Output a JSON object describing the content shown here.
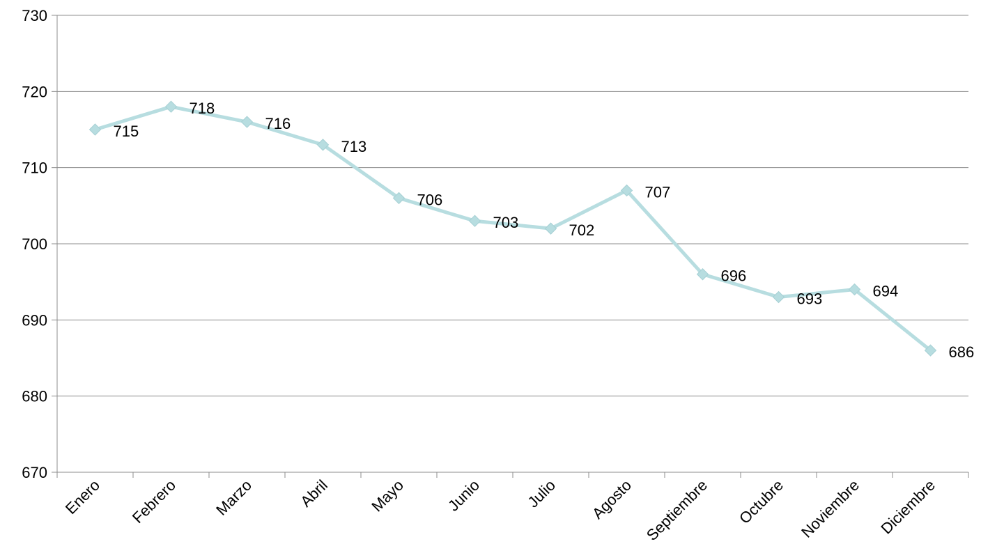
{
  "chart_data": {
    "type": "line",
    "title": "",
    "xlabel": "",
    "ylabel": "",
    "categories": [
      "Enero",
      "Febrero",
      "Marzo",
      "Abril",
      "Mayo",
      "Junio",
      "Julio",
      "Agosto",
      "Septiembre",
      "Octubre",
      "Noviembre",
      "Diciembre"
    ],
    "series": [
      {
        "values": [
          715,
          718,
          716,
          713,
          706,
          703,
          702,
          707,
          696,
          693,
          694,
          686
        ],
        "color": "#b7dde0"
      }
    ],
    "ylim": [
      670,
      730
    ],
    "yticks": [
      670,
      680,
      690,
      700,
      710,
      720,
      730
    ],
    "grid": true,
    "legend": "none",
    "marker": "diamond"
  }
}
